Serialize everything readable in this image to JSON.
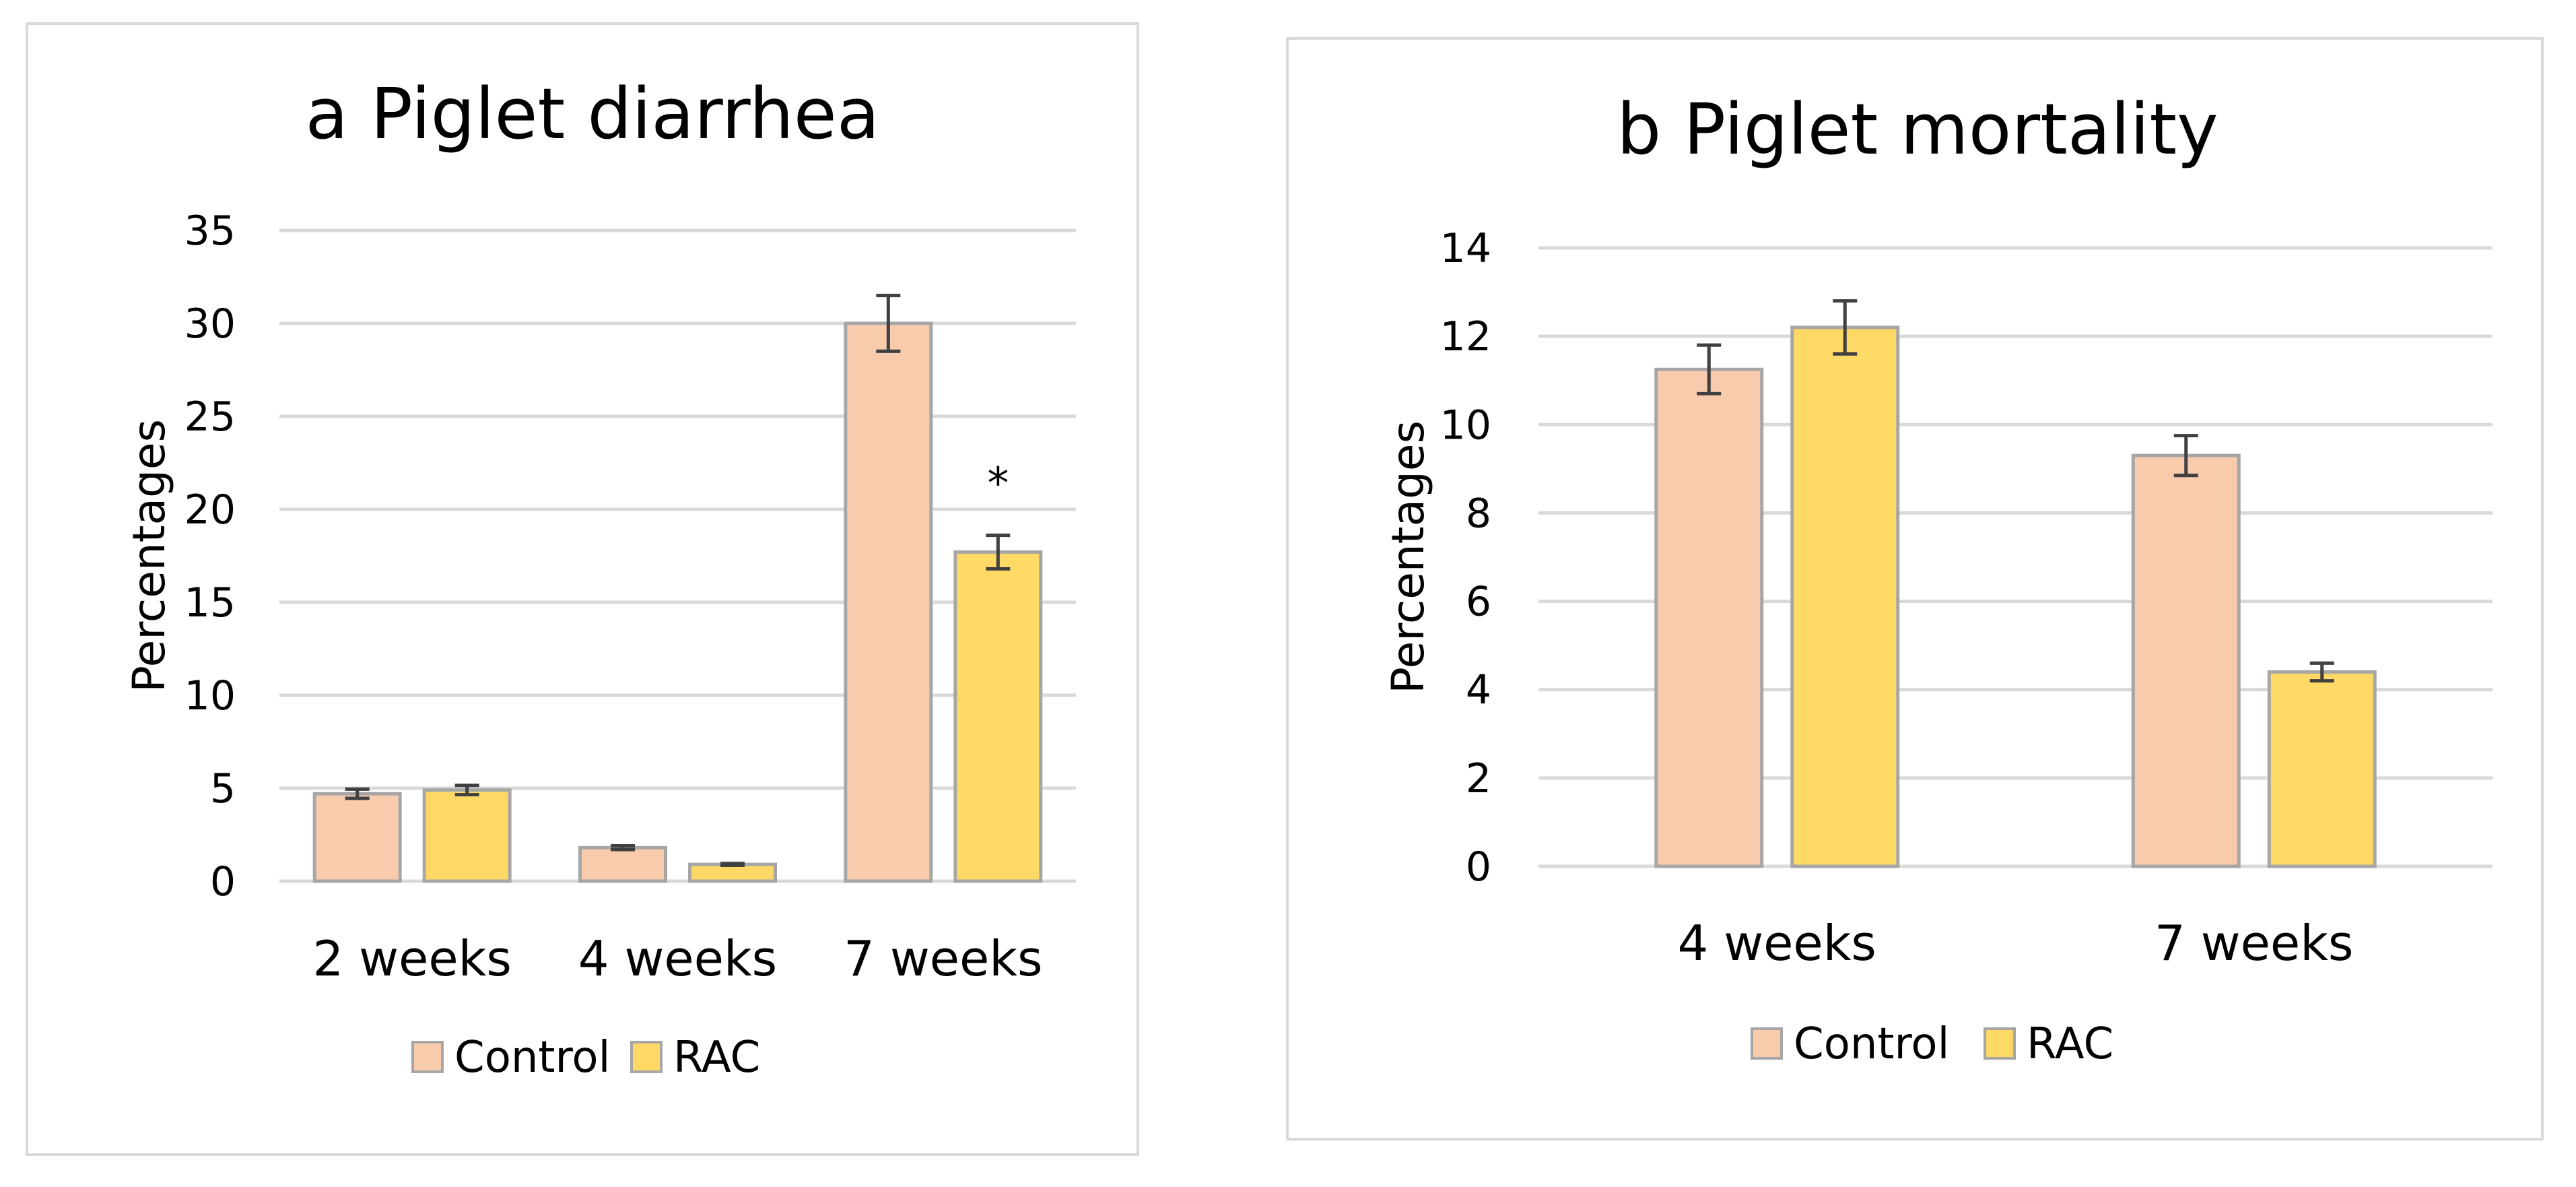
{
  "chart_data": [
    {
      "id": "a",
      "type": "bar",
      "title": "a  Piglet diarrhea",
      "xlabel": "",
      "ylabel": "Percentages",
      "ylim": [
        0,
        35
      ],
      "yticks": [
        0,
        5,
        10,
        15,
        20,
        25,
        30,
        35
      ],
      "categories": [
        "2 weeks",
        "4 weeks",
        "7 weeks"
      ],
      "series": [
        {
          "name": "Control",
          "color": "#f8cbad",
          "values": [
            4.7,
            1.8,
            30.0
          ],
          "errors": [
            0.25,
            0.1,
            1.5
          ]
        },
        {
          "name": "RAC",
          "color": "#ffd966",
          "values": [
            4.9,
            0.9,
            17.7
          ],
          "errors": [
            0.25,
            0.05,
            0.9
          ]
        }
      ],
      "annotations": [
        {
          "category": "7 weeks",
          "series": "RAC",
          "text": "*"
        }
      ],
      "grid": true,
      "legend": "bottom-center"
    },
    {
      "id": "b",
      "type": "bar",
      "title": "b Piglet mortality",
      "xlabel": "",
      "ylabel": "Percentages",
      "ylim": [
        0,
        14
      ],
      "yticks": [
        0,
        2,
        4,
        6,
        8,
        10,
        12,
        14
      ],
      "categories": [
        "4 weeks",
        "7 weeks"
      ],
      "series": [
        {
          "name": "Control",
          "color": "#f8cbad",
          "values": [
            11.25,
            9.3
          ],
          "errors": [
            0.55,
            0.45
          ]
        },
        {
          "name": "RAC",
          "color": "#ffd966",
          "values": [
            12.2,
            4.4
          ],
          "errors": [
            0.6,
            0.2
          ]
        }
      ],
      "annotations": [],
      "grid": true,
      "legend": "bottom-center"
    }
  ]
}
